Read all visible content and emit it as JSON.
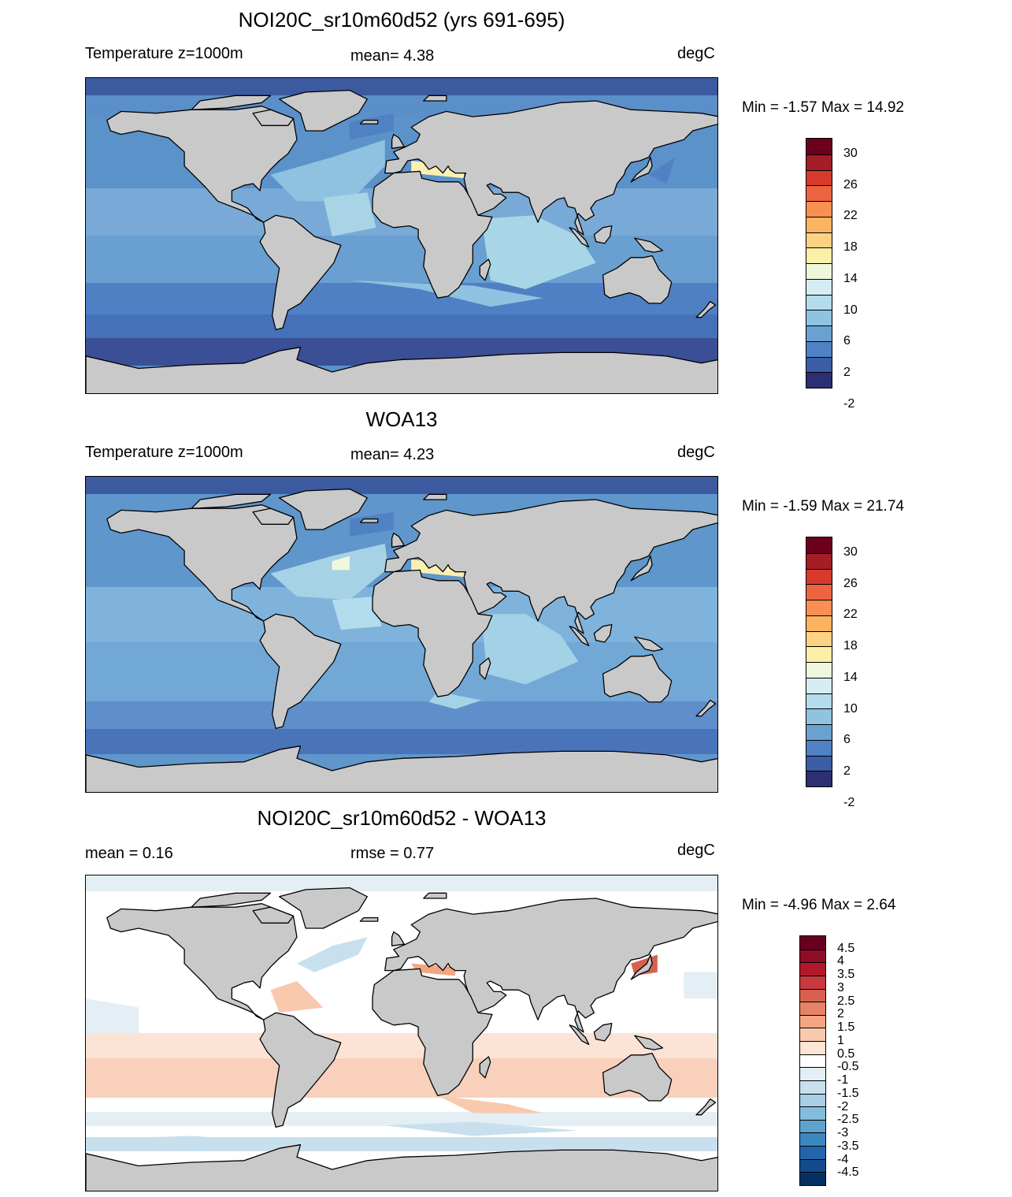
{
  "panels": [
    {
      "title": "NOI20C_sr10m60d52 (yrs 691-695)",
      "left_label": "Temperature z=1000m",
      "center_label": "mean=   4.38",
      "units": "degC",
      "minmax": "Min =  -1.57 Max =  14.92",
      "scheme": "absolute",
      "colorbar_labels": [
        "30",
        "26",
        "22",
        "18",
        "14",
        "10",
        "6",
        "2",
        "-2"
      ]
    },
    {
      "title": "WOA13",
      "left_label": "Temperature z=1000m",
      "center_label": "mean=   4.23",
      "units": "degC",
      "minmax": "Min =  -1.59 Max =  21.74",
      "scheme": "absolute",
      "colorbar_labels": [
        "30",
        "26",
        "22",
        "18",
        "14",
        "10",
        "6",
        "2",
        "-2"
      ]
    },
    {
      "title": "NOI20C_sr10m60d52 - WOA13",
      "left_label": "mean =   0.16",
      "center_label": "rmse =   0.77",
      "units": "degC",
      "minmax": "Min =  -4.96 Max =   2.64",
      "scheme": "difference",
      "colorbar_labels": [
        "4.5",
        "4",
        "3.5",
        "3",
        "2.5",
        "2",
        "1.5",
        "1",
        "0.5",
        "-0.5",
        "-1",
        "-1.5",
        "-2",
        "-2.5",
        "-3",
        "-3.5",
        "-4",
        "-4.5"
      ]
    }
  ],
  "colors": {
    "land": "#c9c9c9",
    "absolute_scale": [
      "#6b001d",
      "#a51e26",
      "#d73a2b",
      "#ee6440",
      "#f98f53",
      "#fcb463",
      "#fdd383",
      "#fcefa8",
      "#eef7dc",
      "#d5edf2",
      "#b3dcec",
      "#8fc4e0",
      "#6aa1d0",
      "#4f81c3",
      "#3b5ea6",
      "#2c2f72"
    ],
    "difference_scale": [
      "#67001f",
      "#8f0c26",
      "#b2182b",
      "#c7393c",
      "#d6604d",
      "#e58267",
      "#f4a582",
      "#f9c9ae",
      "#fde4d6",
      "#ffffff",
      "#e3eef5",
      "#c8dfee",
      "#a8cfe5",
      "#84bcdb",
      "#5ea3cd",
      "#3d87bf",
      "#2166ac",
      "#134c8c",
      "#053061"
    ]
  }
}
